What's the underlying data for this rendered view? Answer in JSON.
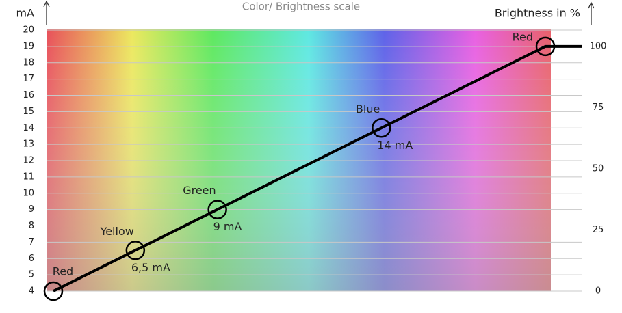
{
  "chart_data": {
    "type": "line",
    "title": "Color/ Brightness scale",
    "y_label": "mA",
    "y2_label": "Brightness in %",
    "ylim": [
      4,
      20
    ],
    "yticks": [
      4,
      5,
      6,
      7,
      8,
      9,
      10,
      11,
      12,
      13,
      14,
      15,
      16,
      17,
      18,
      19,
      20
    ],
    "y2lim": [
      0,
      106.7
    ],
    "y2ticks": [
      0,
      25,
      50,
      75,
      100
    ],
    "grid": true,
    "series": [
      {
        "color": "#000000",
        "point_labels": [
          "Red",
          "Yellow",
          "Green",
          "Blue",
          "Red"
        ],
        "values": [
          4,
          6.5,
          9,
          14,
          19
        ],
        "value_labels": [
          null,
          "6,5 mA",
          "9 mA",
          "14 mA",
          null
        ]
      }
    ]
  }
}
